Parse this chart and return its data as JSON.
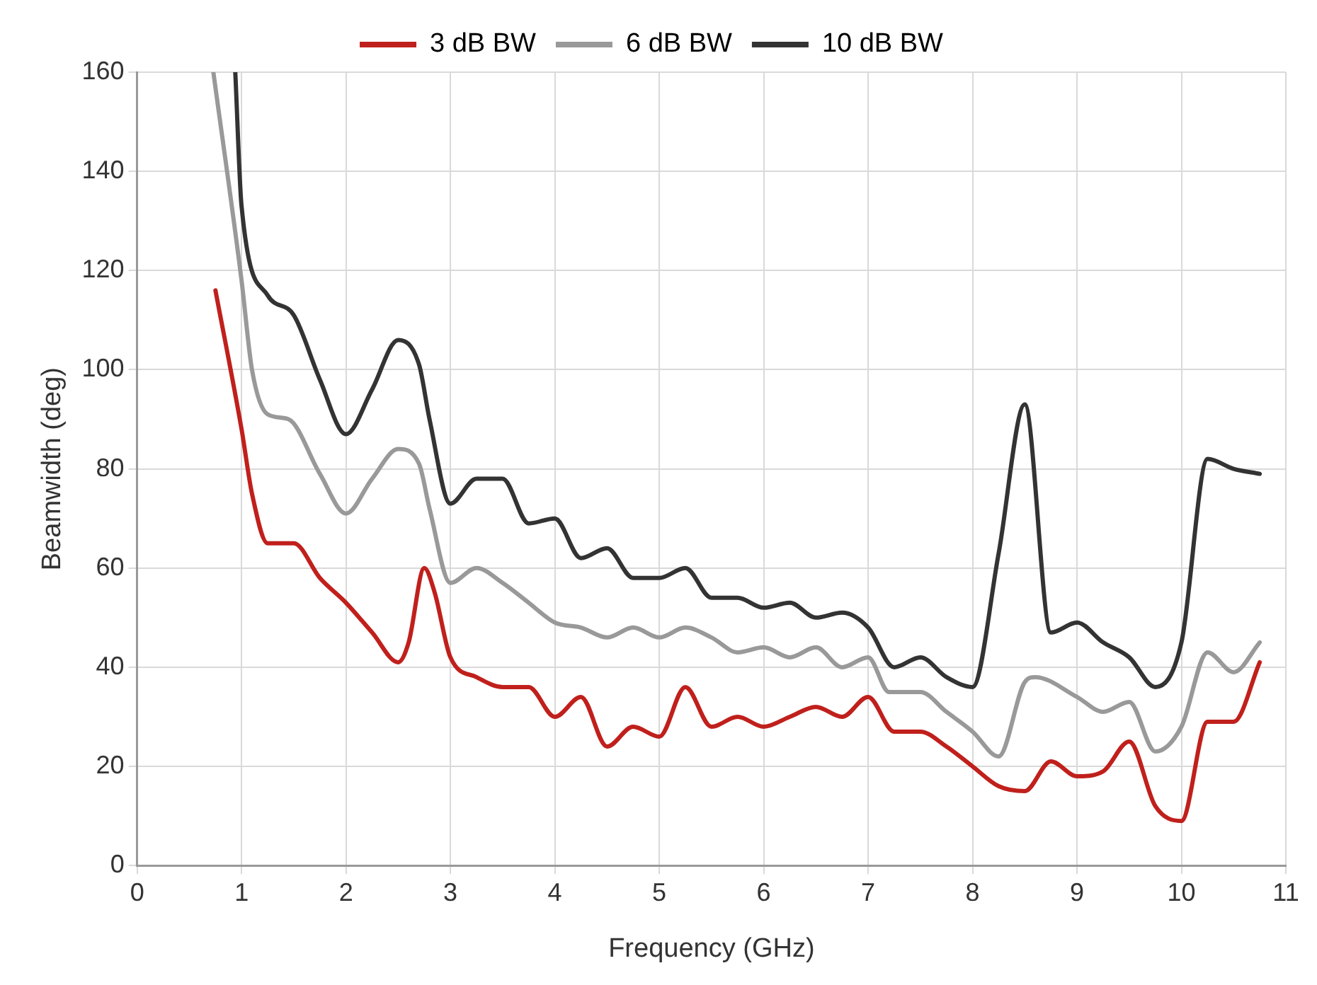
{
  "chart_data": {
    "type": "line",
    "xlabel": "Frequency (GHz)",
    "ylabel": "Beamwidth (deg)",
    "xlim": [
      0,
      11
    ],
    "xticks": [
      0,
      1,
      2,
      3,
      4,
      5,
      6,
      7,
      8,
      9,
      10,
      11
    ],
    "ylim": [
      0,
      160
    ],
    "yticks": [
      0,
      20,
      40,
      60,
      80,
      100,
      120,
      140,
      160
    ],
    "grid": true,
    "legend": "top",
    "marker": "none",
    "line_style": "solid",
    "series": [
      {
        "name": "3 dB BW",
        "color": "#c0201c",
        "x": [
          0.75,
          1.0,
          1.1,
          1.25,
          1.5,
          1.75,
          2.0,
          2.25,
          2.5,
          2.6,
          2.75,
          2.85,
          3.0,
          3.25,
          3.5,
          3.75,
          4.0,
          4.25,
          4.5,
          4.75,
          5.0,
          5.25,
          5.5,
          5.75,
          6.0,
          6.25,
          6.5,
          6.75,
          7.0,
          7.25,
          7.5,
          7.75,
          8.0,
          8.25,
          8.5,
          8.75,
          9.0,
          9.25,
          9.5,
          9.75,
          10.0,
          10.25,
          10.5,
          10.75
        ],
        "values": [
          116,
          88,
          75,
          65,
          65,
          58,
          53,
          47,
          41,
          45,
          60,
          55,
          42,
          38,
          36,
          36,
          30,
          34,
          24,
          28,
          26,
          36,
          28,
          30,
          28,
          30,
          32,
          30,
          34,
          27,
          27,
          24,
          20,
          16,
          15,
          21,
          18,
          19,
          25,
          12,
          9,
          29,
          29,
          41
        ]
      },
      {
        "name": "6 dB BW",
        "color": "#999999",
        "x": [
          0.73,
          1.0,
          1.1,
          1.25,
          1.45,
          1.75,
          2.0,
          2.25,
          2.5,
          2.7,
          2.8,
          3.0,
          3.25,
          3.5,
          3.75,
          4.0,
          4.25,
          4.5,
          4.75,
          5.0,
          5.25,
          5.5,
          5.75,
          6.0,
          6.25,
          6.5,
          6.75,
          7.0,
          7.2,
          7.5,
          7.75,
          8.0,
          8.25,
          8.5,
          8.6,
          9.0,
          9.25,
          9.5,
          9.75,
          10.0,
          10.25,
          10.5,
          10.75
        ],
        "values": [
          160,
          118,
          100,
          91,
          90,
          79,
          71,
          78,
          84,
          81,
          72,
          57,
          60,
          57,
          53,
          49,
          48,
          46,
          48,
          46,
          48,
          46,
          43,
          44,
          42,
          44,
          40,
          42,
          35,
          35,
          31,
          27,
          22,
          37,
          38,
          34,
          31,
          33,
          23,
          28,
          43,
          39,
          45
        ]
      },
      {
        "name": "10 dB BW",
        "color": "#333333",
        "x": [
          0.94,
          1.0,
          1.25,
          1.5,
          1.75,
          2.0,
          2.25,
          2.5,
          2.7,
          2.8,
          3.0,
          3.25,
          3.5,
          3.75,
          4.0,
          4.25,
          4.5,
          4.75,
          5.0,
          5.25,
          5.5,
          5.75,
          6.0,
          6.25,
          6.5,
          6.75,
          7.0,
          7.25,
          7.5,
          7.75,
          8.0,
          8.25,
          8.5,
          8.75,
          9.0,
          9.25,
          9.5,
          9.75,
          10.0,
          10.25,
          10.5,
          10.75
        ],
        "values": [
          160,
          133,
          115,
          111,
          98,
          87,
          96,
          106,
          101,
          90,
          73,
          78,
          78,
          69,
          70,
          62,
          64,
          58,
          58,
          60,
          54,
          54,
          52,
          53,
          50,
          51,
          48,
          40,
          42,
          38,
          36,
          63,
          93,
          47,
          49,
          45,
          42,
          36,
          45,
          82,
          80,
          79
        ]
      }
    ]
  }
}
